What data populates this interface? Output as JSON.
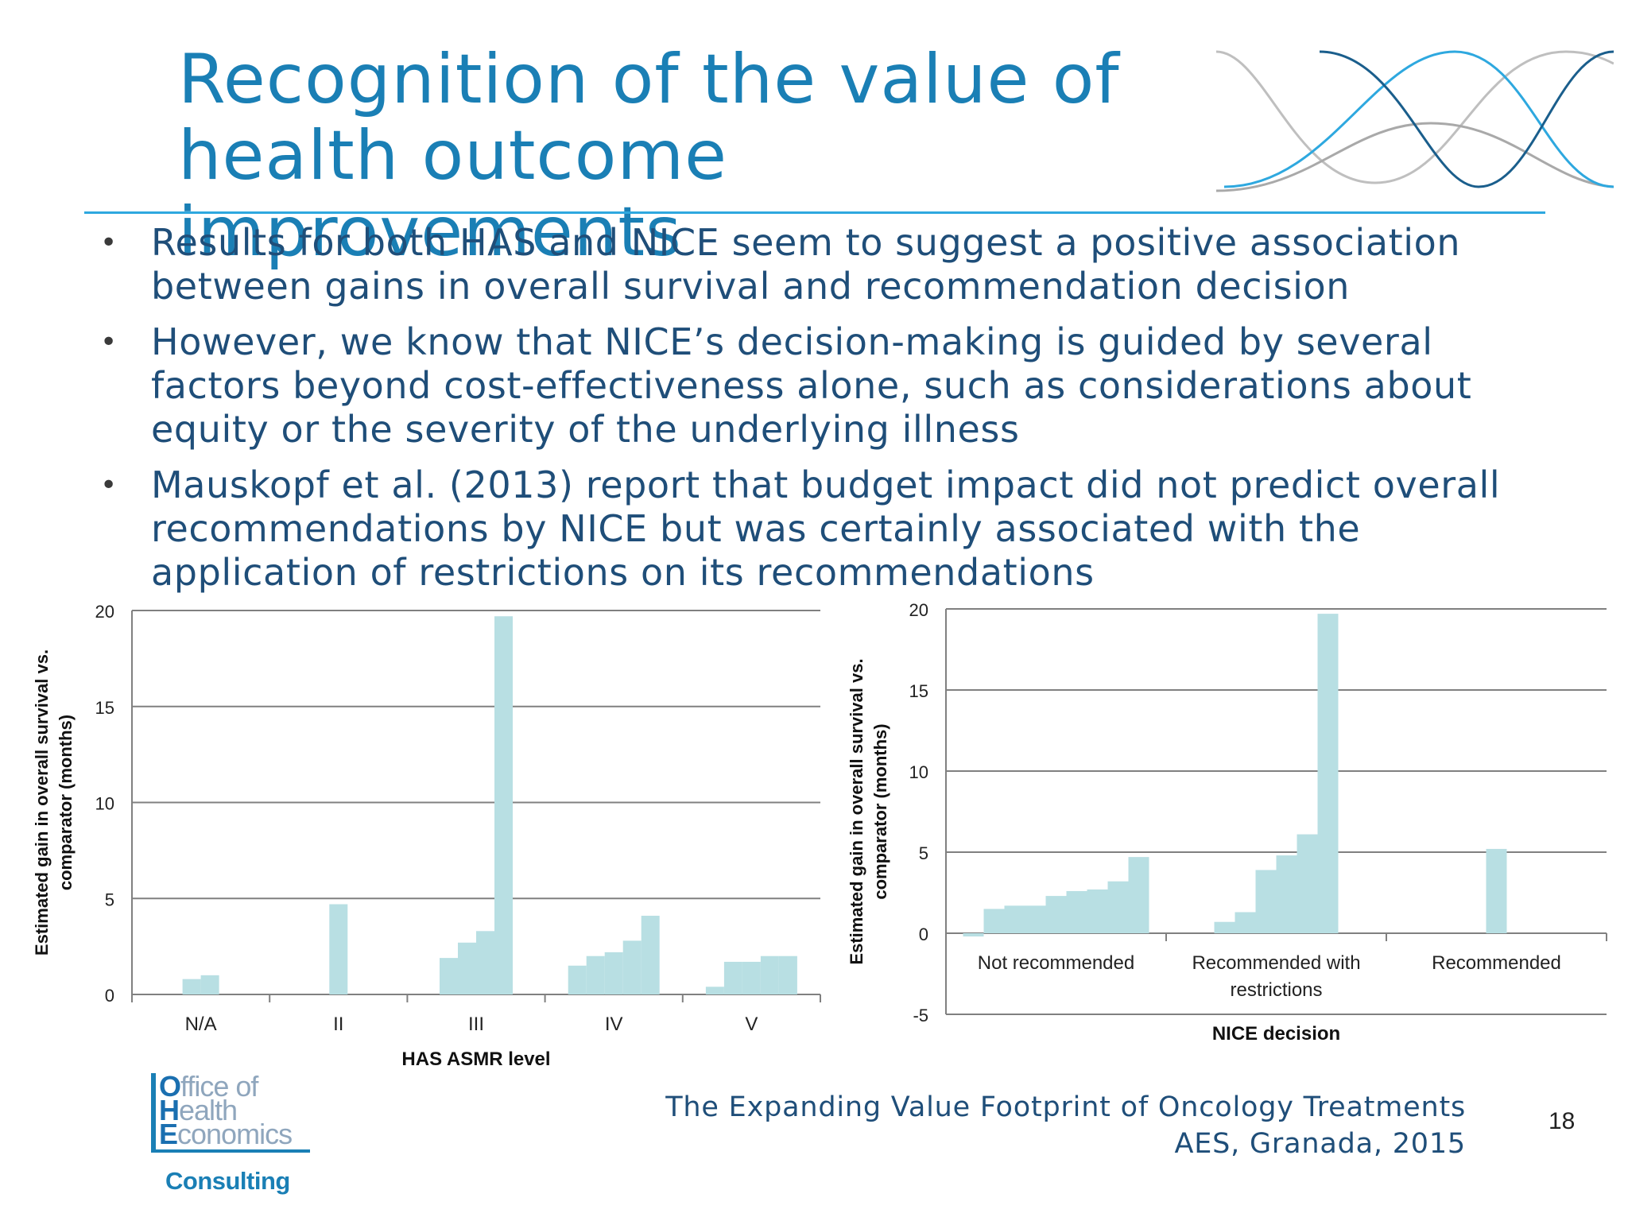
{
  "slide": {
    "title_line1": "Recognition of the value of",
    "title_line2": "health outcome improvements",
    "bullets": [
      "Results for both HAS and NICE seem to suggest a positive association between gains in overall survival and recommendation decision",
      "However, we know that NICE’s decision-making is guided by several factors beyond cost-effectiveness alone, such as considerations about equity or the severity of the underlying illness",
      "Mauskopf et al. (2013) report that budget impact did not predict overall recommendations by NICE but was certainly associated with the application of restrictions on its recommendations"
    ],
    "bullet_symbol": "•",
    "footer_line1": "The Expanding Value Footprint of Oncology Treatments",
    "footer_line2": "AES, Granada, 2015",
    "page_number": "18",
    "logo": {
      "line1_cap": "O",
      "line1_rest": "ffice of",
      "line2_cap": "H",
      "line2_rest": "ealth",
      "line3_cap": "E",
      "line3_rest": "conomics",
      "sub": "Consulting"
    },
    "colors": {
      "title": "#1a7fb5",
      "body_text": "#1f4e79",
      "rule": "#2ea8df",
      "bar": "#b8dfe3",
      "grid": "#808080"
    }
  },
  "chart_data": [
    {
      "type": "bar",
      "xlabel": "HAS ASMR level",
      "ylabel_line1": "Estimated gain in overall survival vs.",
      "ylabel_line2": "comparator (months)",
      "ylim": [
        0,
        20
      ],
      "yticks": [
        0,
        5,
        10,
        15,
        20
      ],
      "grid": true,
      "categories": [
        "N/A",
        "II",
        "III",
        "IV",
        "V"
      ],
      "values": [
        [
          0.8,
          1.0
        ],
        [
          4.7
        ],
        [
          1.9,
          2.7,
          3.3,
          19.7
        ],
        [
          1.5,
          2.0,
          2.2,
          2.8,
          4.1
        ],
        [
          0.4,
          1.7,
          1.7,
          2.0,
          2.0
        ]
      ]
    },
    {
      "type": "bar",
      "xlabel": "NICE decision",
      "ylabel_line1": "Estimated gain in overall survival vs.",
      "ylabel_line2": "comparator (months)",
      "ylim": [
        -5,
        20
      ],
      "yticks": [
        -5,
        0,
        5,
        10,
        15,
        20
      ],
      "grid": true,
      "categories": [
        "Not recommended",
        "Recommended with restrictions",
        "Recommended"
      ],
      "category_label_lines": [
        [
          "Not recommended"
        ],
        [
          "Recommended with",
          "restrictions"
        ],
        [
          "Recommended"
        ]
      ],
      "values": [
        [
          -0.2,
          1.5,
          1.7,
          1.7,
          2.3,
          2.6,
          2.7,
          3.2,
          4.7
        ],
        [
          0.7,
          1.3,
          3.9,
          4.8,
          6.1,
          19.7
        ],
        [
          5.2
        ]
      ]
    }
  ]
}
